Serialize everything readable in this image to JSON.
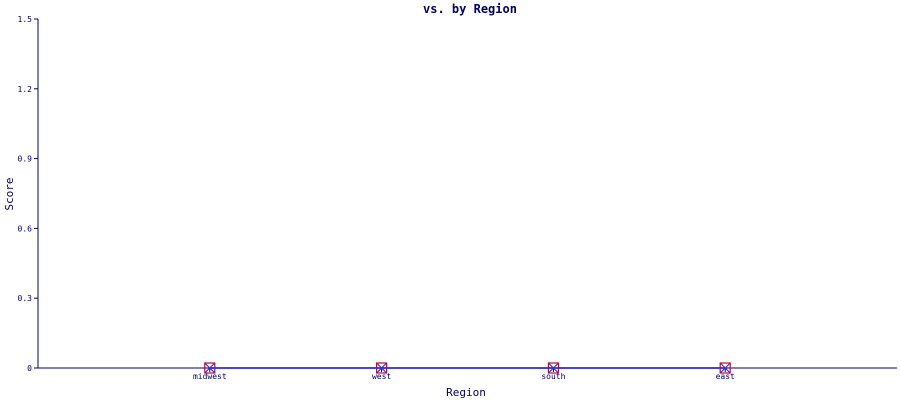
{
  "chart_data": {
    "type": "line",
    "title": "vs.  by Region",
    "xlabel": "Region",
    "ylabel": "Score",
    "categories": [
      "midwest",
      "west",
      "south",
      "east"
    ],
    "ylim": [
      0,
      1.5
    ],
    "yticks": [
      "0",
      "0.3",
      "0.6",
      "0.9",
      "1.2",
      "1.5"
    ],
    "series": [
      {
        "color": "#000066",
        "marker_color": "#cc0033",
        "values": [
          0,
          0,
          0,
          0
        ]
      },
      {
        "color": "#3333cc",
        "marker_color": "#3333cc",
        "values": [
          0,
          0,
          0,
          0
        ]
      }
    ],
    "grid": false,
    "legend": "none"
  }
}
